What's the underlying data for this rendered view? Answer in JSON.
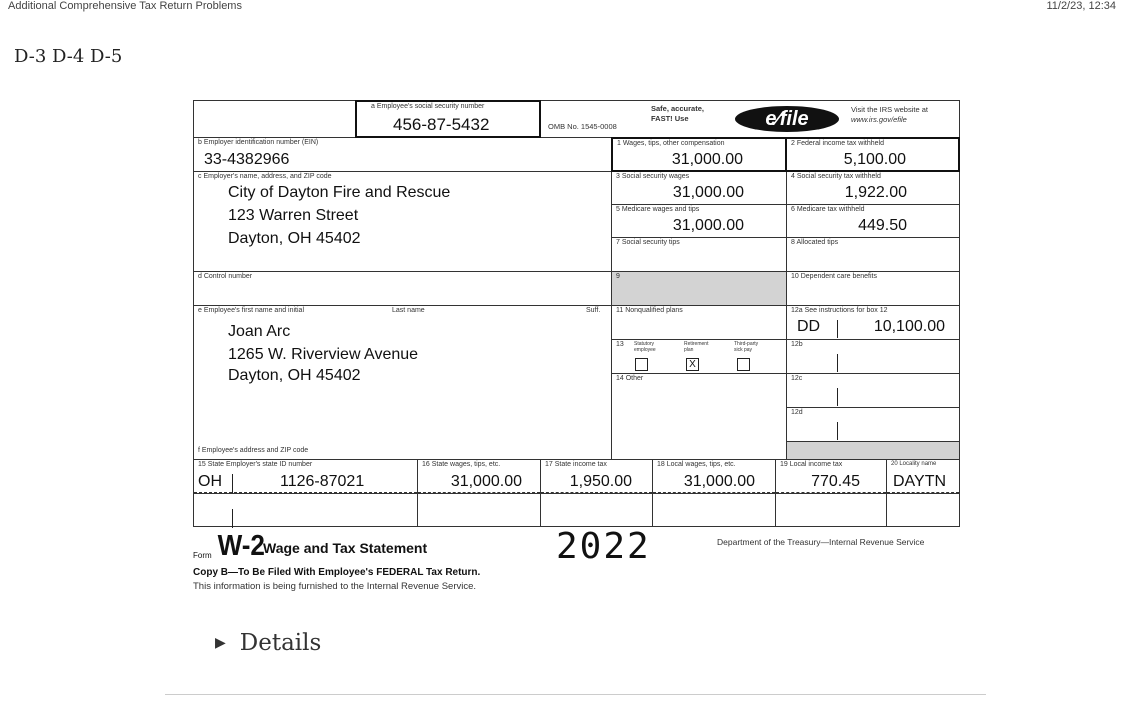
{
  "header": {
    "title": "Additional Comprehensive Tax Return Problems",
    "timestamp": "11/2/23, 12:34"
  },
  "breadcrumb": "D-3 D-4 D-5",
  "w2": {
    "a": {
      "label": "a  Employee's social security number",
      "value": "456-87-5432"
    },
    "omb": "OMB No. 1545-0008",
    "safe": "Safe, accurate,",
    "fast": "FAST! Use",
    "efile_logo": "IRS e-file",
    "visit1": "Visit the IRS website at",
    "visit2": "www.irs.gov/efile",
    "b": {
      "label": "b  Employer identification number (EIN)",
      "value": "33-4382966"
    },
    "c": {
      "label": "c  Employer's name, address, and ZIP code",
      "lines": [
        "City of Dayton Fire and Rescue",
        "123 Warren Street",
        "Dayton, OH 45402"
      ]
    },
    "d": {
      "label": "d  Control number"
    },
    "e": {
      "label": "e  Employee's first name and initial",
      "last": "Last name",
      "suff": "Suff.",
      "lines": [
        "Joan Arc",
        "1265 W. Riverview Avenue",
        "Dayton, OH 45402"
      ]
    },
    "f": {
      "label": "f  Employee's address and ZIP code"
    },
    "box1": {
      "label": "1  Wages, tips, other compensation",
      "value": "31,000.00"
    },
    "box2": {
      "label": "2  Federal income tax withheld",
      "value": "5,100.00"
    },
    "box3": {
      "label": "3  Social security wages",
      "value": "31,000.00"
    },
    "box4": {
      "label": "4  Social security tax withheld",
      "value": "1,922.00"
    },
    "box5": {
      "label": "5  Medicare wages and tips",
      "value": "31,000.00"
    },
    "box6": {
      "label": "6  Medicare tax withheld",
      "value": "449.50"
    },
    "box7": {
      "label": "7  Social security tips"
    },
    "box8": {
      "label": "8  Allocated tips"
    },
    "box9": {
      "label": "9"
    },
    "box10": {
      "label": "10  Dependent care benefits"
    },
    "box11": {
      "label": "11  Nonqualified plans"
    },
    "box12a": {
      "label": "12a  See instructions for box 12",
      "code": "DD",
      "value": "10,100.00"
    },
    "box12b": {
      "label": "12b"
    },
    "box12c": {
      "label": "12c"
    },
    "box12d": {
      "label": "12d"
    },
    "box13": {
      "label": "13",
      "statutory": "Statutory employee",
      "retirement": "Retirement plan",
      "thirdparty": "Third-party sick pay",
      "retirement_mark": "X"
    },
    "box14": {
      "label": "14  Other"
    },
    "box15": {
      "label": "15 State   Employer's state ID number",
      "state": "OH",
      "id": "1126-87021"
    },
    "box16": {
      "label": "16 State wages, tips, etc.",
      "value": "31,000.00"
    },
    "box17": {
      "label": "17 State income tax",
      "value": "1,950.00"
    },
    "box18": {
      "label": "18 Local wages, tips, etc.",
      "value": "31,000.00"
    },
    "box19": {
      "label": "19 Local income tax",
      "value": "770.45"
    },
    "box20": {
      "label": "20 Locality name",
      "value": "DAYTN"
    },
    "form_word": "Form",
    "form_name": "W-2",
    "form_title": "Wage and Tax Statement",
    "year": "2022",
    "dept": "Department of the Treasury—Internal Revenue Service",
    "copy": "Copy B—To Be Filed With Employee's FEDERAL Tax Return.",
    "info": "This information is being furnished to the Internal Revenue Service."
  },
  "details": {
    "label": "Details"
  }
}
